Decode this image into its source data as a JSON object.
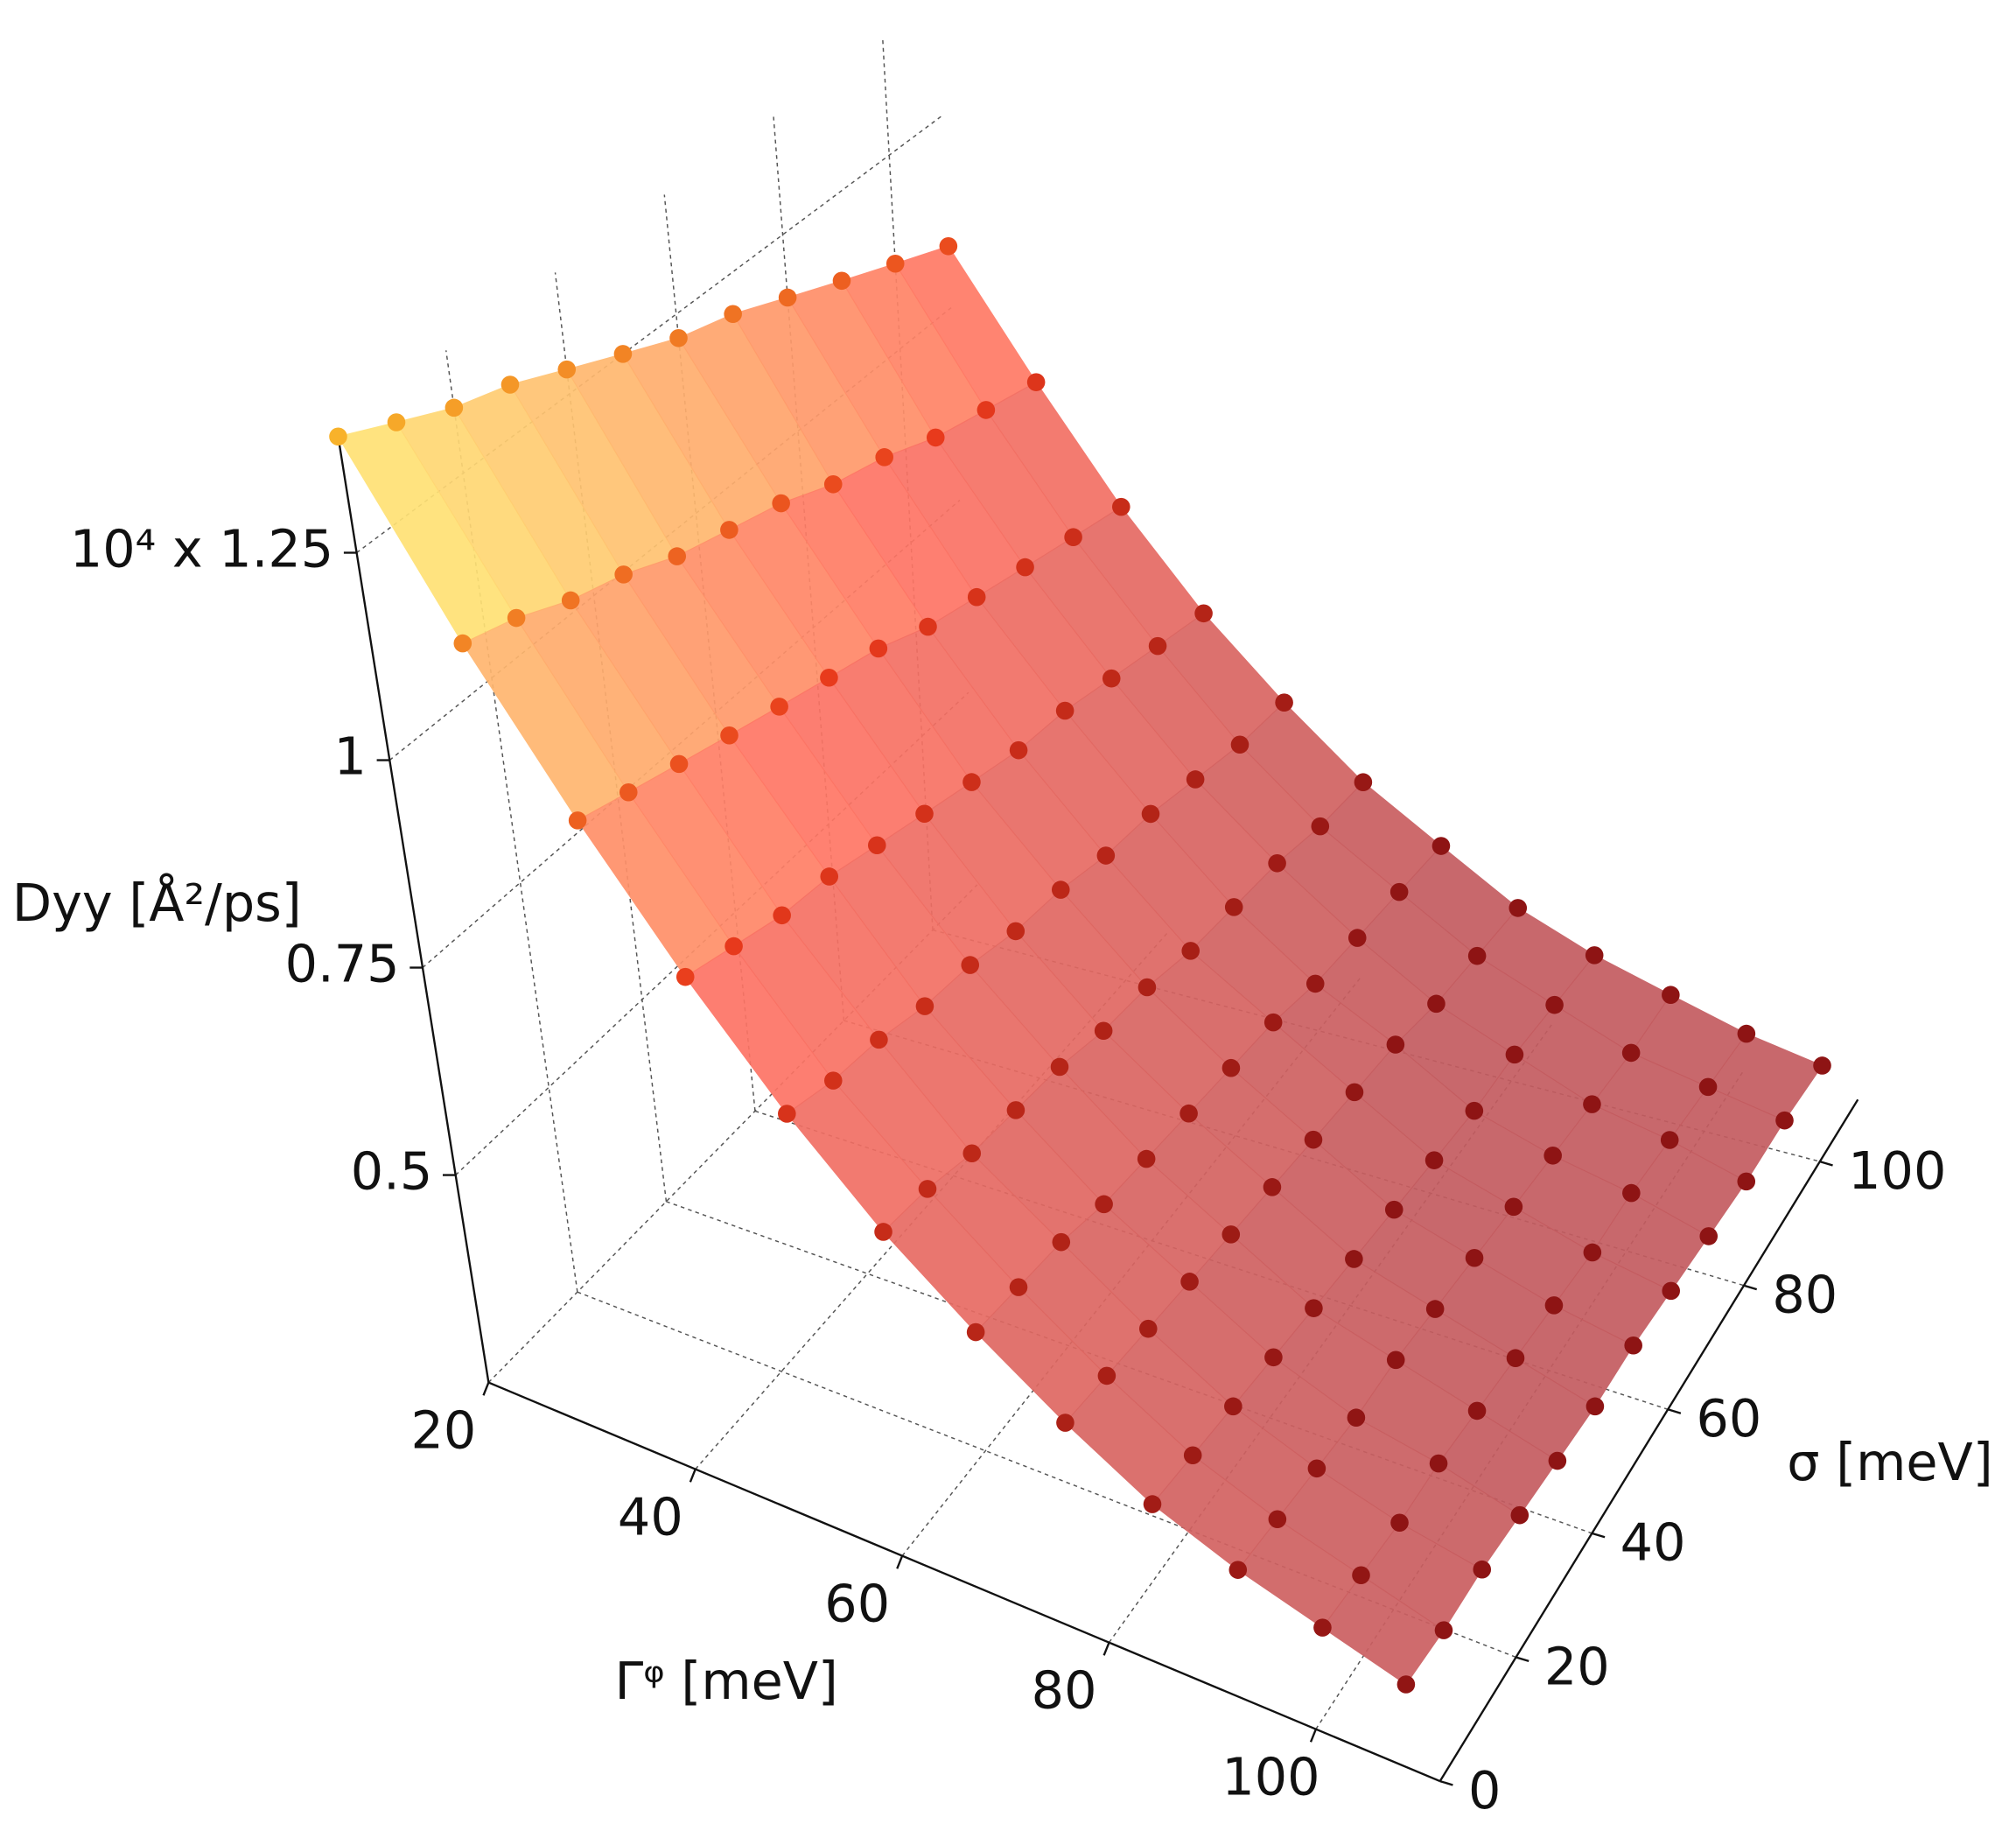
{
  "chart_data": {
    "type": "surface3d",
    "x_label": "Γᵠ [meV]",
    "y_label": "σ [meV]",
    "z_label": "Dyy [Å²/ps]",
    "x": [
      20,
      28,
      36,
      44,
      52,
      60,
      68,
      76,
      84,
      92,
      100,
      108
    ],
    "y": [
      0,
      10,
      20,
      30,
      40,
      50,
      60,
      70,
      80,
      90,
      100,
      110
    ],
    "z": [
      [
        1.39,
        1.36,
        1.33,
        1.31,
        1.28,
        1.25,
        1.22,
        1.2,
        1.17,
        1.14,
        1.11,
        1.08
      ],
      [
        1.2,
        1.18,
        1.15,
        1.13,
        1.1,
        1.08,
        1.06,
        1.03,
        1.01,
        0.98,
        0.96,
        0.94
      ],
      [
        1.04,
        1.02,
        1.0,
        0.98,
        0.96,
        0.94,
        0.92,
        0.89,
        0.87,
        0.85,
        0.83,
        0.81
      ],
      [
        0.9,
        0.88,
        0.86,
        0.85,
        0.83,
        0.81,
        0.79,
        0.77,
        0.76,
        0.74,
        0.72,
        0.7
      ],
      [
        0.78,
        0.76,
        0.75,
        0.73,
        0.72,
        0.7,
        0.69,
        0.67,
        0.66,
        0.64,
        0.62,
        0.61
      ],
      [
        0.68,
        0.67,
        0.65,
        0.64,
        0.63,
        0.61,
        0.6,
        0.58,
        0.57,
        0.56,
        0.54,
        0.53
      ],
      [
        0.6,
        0.59,
        0.58,
        0.56,
        0.55,
        0.54,
        0.53,
        0.52,
        0.5,
        0.49,
        0.48,
        0.47
      ],
      [
        0.53,
        0.52,
        0.51,
        0.5,
        0.49,
        0.48,
        0.47,
        0.46,
        0.45,
        0.43,
        0.42,
        0.41
      ],
      [
        0.47,
        0.46,
        0.45,
        0.44,
        0.43,
        0.42,
        0.41,
        0.4,
        0.39,
        0.39,
        0.38,
        0.37
      ],
      [
        0.43,
        0.42,
        0.41,
        0.4,
        0.4,
        0.39,
        0.38,
        0.37,
        0.36,
        0.35,
        0.34,
        0.34
      ],
      [
        0.4,
        0.39,
        0.38,
        0.38,
        0.37,
        0.36,
        0.35,
        0.34,
        0.34,
        0.33,
        0.32,
        0.31
      ],
      [
        0.37,
        0.36,
        0.36,
        0.35,
        0.34,
        0.33,
        0.33,
        0.32,
        0.31,
        0.3,
        0.3,
        0.29
      ]
    ],
    "xlim": [
      20,
      112
    ],
    "ylim": [
      0,
      110
    ],
    "zlim": [
      0.25,
      1.4
    ],
    "xticks": [
      20,
      40,
      60,
      80,
      100
    ],
    "yticks": [
      0,
      20,
      40,
      60,
      80,
      100
    ],
    "zticks": [
      0.5,
      0.75,
      1,
      {
        "value": 1.25,
        "label": "10⁴ x 1.25"
      }
    ],
    "grid": true,
    "surface_colors": [
      "#ffff7a",
      "#ff7565",
      "#c45c60"
    ],
    "marker_colors": [
      "#f8b42a",
      "#e83a1c",
      "#8e1414"
    ]
  }
}
